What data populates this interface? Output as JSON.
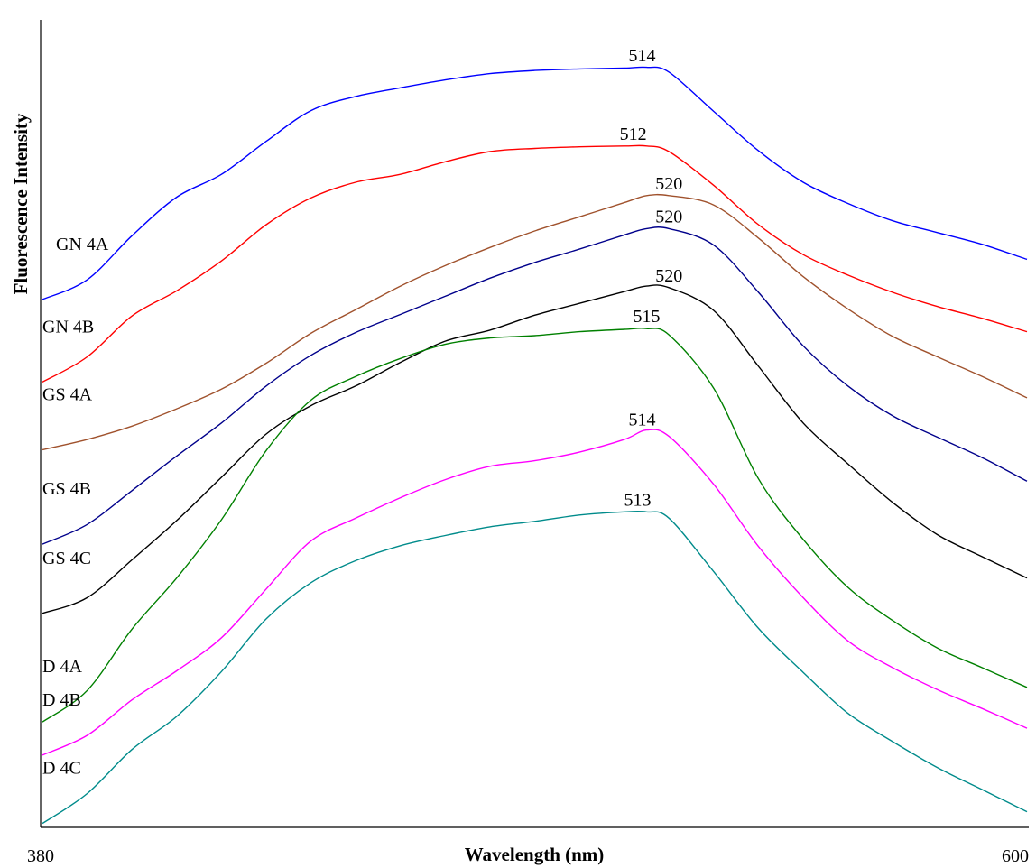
{
  "chart_data": {
    "type": "line",
    "xlabel": "Wavelength (nm)",
    "ylabel": "Fluorescence Intensity",
    "xlim": [
      380,
      600
    ],
    "x_ticks": [
      "380",
      "600"
    ],
    "y_ticks_shown": false,
    "legend": "none",
    "x": [
      380,
      390,
      400,
      410,
      420,
      430,
      440,
      450,
      460,
      470,
      480,
      490,
      500,
      510,
      515,
      520,
      530,
      540,
      550,
      560,
      570,
      580,
      590,
      600
    ],
    "series": [
      {
        "name": "GN 4A",
        "color": "#0000ff",
        "peak_label": "514",
        "peak_x": 514,
        "values": [
          0.671,
          0.696,
          0.752,
          0.801,
          0.83,
          0.872,
          0.911,
          0.929,
          0.94,
          0.95,
          0.958,
          0.962,
          0.964,
          0.965,
          0.966,
          0.96,
          0.91,
          0.86,
          0.82,
          0.793,
          0.771,
          0.756,
          0.741,
          0.722
        ]
      },
      {
        "name": "GN 4B",
        "color": "#ff0000",
        "peak_label": "512",
        "peak_x": 512,
        "values": [
          0.566,
          0.598,
          0.65,
          0.682,
          0.72,
          0.766,
          0.8,
          0.82,
          0.83,
          0.846,
          0.859,
          0.863,
          0.865,
          0.866,
          0.866,
          0.859,
          0.816,
          0.766,
          0.728,
          0.702,
          0.68,
          0.662,
          0.647,
          0.63
        ]
      },
      {
        "name": "GS 4A",
        "color": "#a0522d",
        "peak_label": "520",
        "peak_x": 520,
        "values": [
          0.48,
          0.493,
          0.51,
          0.532,
          0.557,
          0.59,
          0.628,
          0.658,
          0.688,
          0.714,
          0.737,
          0.758,
          0.776,
          0.794,
          0.803,
          0.803,
          0.791,
          0.749,
          0.7,
          0.659,
          0.624,
          0.598,
          0.573,
          0.546
        ]
      },
      {
        "name": "GS 4B",
        "color": "#00008b",
        "peak_label": "520",
        "peak_x": 520,
        "values": [
          0.36,
          0.385,
          0.428,
          0.472,
          0.514,
          0.561,
          0.6,
          0.629,
          0.652,
          0.675,
          0.698,
          0.718,
          0.735,
          0.753,
          0.761,
          0.761,
          0.74,
          0.68,
          0.612,
          0.561,
          0.523,
          0.496,
          0.47,
          0.44
        ]
      },
      {
        "name": "GS 4C",
        "color": "#000000",
        "peak_label": "520",
        "peak_x": 520,
        "values": [
          0.272,
          0.292,
          0.34,
          0.39,
          0.445,
          0.5,
          0.536,
          0.561,
          0.591,
          0.618,
          0.632,
          0.651,
          0.666,
          0.681,
          0.688,
          0.686,
          0.657,
          0.586,
          0.514,
          0.462,
          0.413,
          0.372,
          0.344,
          0.317
        ]
      },
      {
        "name": "D 4A",
        "color": "#008000",
        "peak_label": "515",
        "peak_x": 515,
        "values": [
          0.134,
          0.174,
          0.252,
          0.317,
          0.391,
          0.479,
          0.543,
          0.573,
          0.596,
          0.614,
          0.622,
          0.625,
          0.63,
          0.633,
          0.634,
          0.626,
          0.558,
          0.443,
          0.366,
          0.305,
          0.263,
          0.228,
          0.203,
          0.178
        ]
      },
      {
        "name": "D 4B",
        "color": "#ff00ff",
        "peak_label": "514",
        "peak_x": 514,
        "values": [
          0.092,
          0.117,
          0.162,
          0.199,
          0.241,
          0.303,
          0.364,
          0.393,
          0.419,
          0.442,
          0.459,
          0.466,
          0.477,
          0.493,
          0.505,
          0.497,
          0.436,
          0.357,
          0.292,
          0.237,
          0.203,
          0.175,
          0.151,
          0.126
        ]
      },
      {
        "name": "D 4C",
        "color": "#008b8b",
        "peak_label": "513",
        "peak_x": 513,
        "values": [
          0.005,
          0.043,
          0.099,
          0.141,
          0.198,
          0.265,
          0.311,
          0.339,
          0.358,
          0.371,
          0.382,
          0.389,
          0.397,
          0.401,
          0.401,
          0.393,
          0.325,
          0.253,
          0.197,
          0.145,
          0.109,
          0.076,
          0.048,
          0.02
        ]
      }
    ]
  }
}
